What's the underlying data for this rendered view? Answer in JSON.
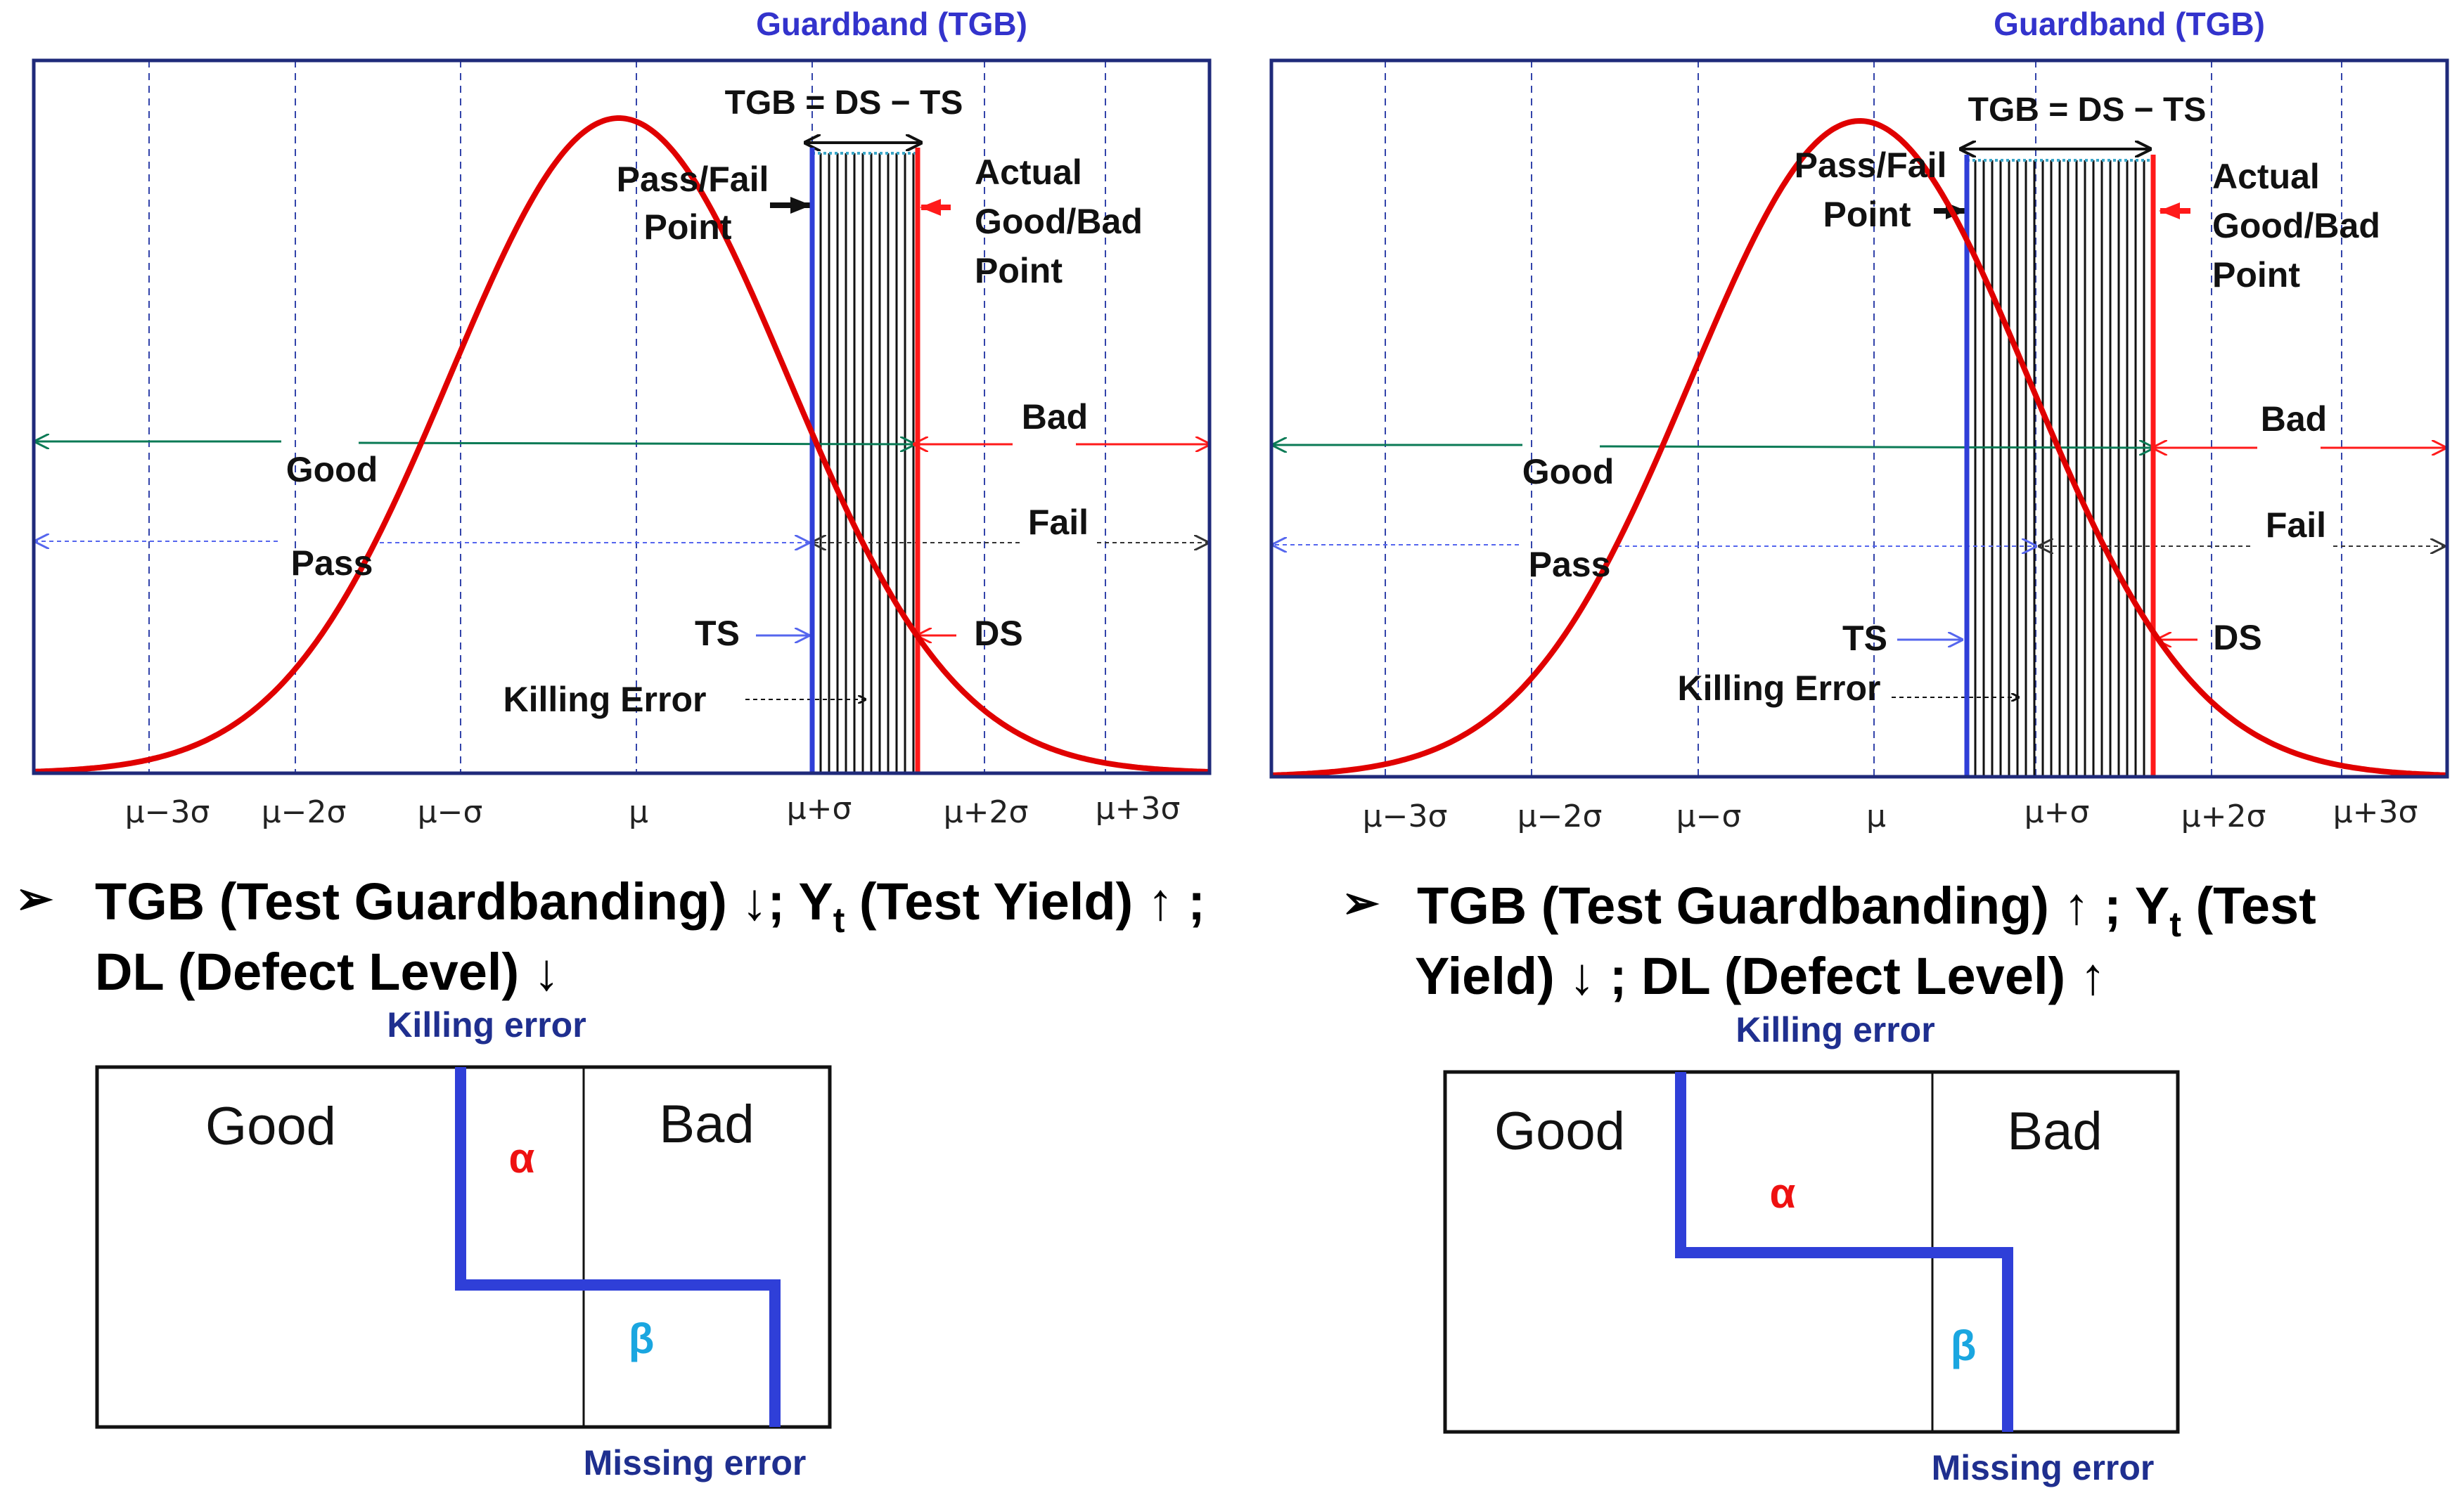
{
  "colors": {
    "frame": "#1f2a7a",
    "curve": "#e00000",
    "ts_line": "#2f3fd8",
    "ds_line": "#ff1a1a",
    "good_arrow": "#0a7a55",
    "pass_arrow": "#5566ee",
    "fail_arrow": "#333333",
    "alpha": "#ee1111",
    "beta": "#1aa6e0",
    "error_path": "#2f3fd8"
  },
  "ticks": [
    "μ−3σ",
    "μ−2σ",
    "μ−σ",
    "μ",
    "μ+σ",
    "μ+2σ",
    "μ+3σ"
  ],
  "left": {
    "guardband_title": "Guardband (TGB)",
    "equation": "TGB = DS − TS",
    "passfail_line1": "Pass/Fail",
    "passfail_line2": "Point",
    "actual_line1": "Actual",
    "actual_line2": "Good/Bad",
    "actual_line3": "Point",
    "bad": "Bad",
    "good": "Good",
    "fail": "Fail",
    "pass": "Pass",
    "ts": "TS",
    "ds": "DS",
    "killing_error": "Killing Error",
    "bullet_symbol": "➢",
    "bullet_line1_a": "TGB (Test Guardbanding) ↓; Y",
    "bullet_sub": "t",
    "bullet_line1_b": " (Test Yield) ↑ ;",
    "bullet_line2": "DL (Defect Level) ↓",
    "matrix": {
      "killing_label": "Killing error",
      "missing_label": "Missing error",
      "good": "Good",
      "bad": "Bad",
      "alpha": "α",
      "beta": "β"
    }
  },
  "right": {
    "guardband_title": "Guardband (TGB)",
    "equation": "TGB = DS − TS",
    "passfail_line1": "Pass/Fail",
    "passfail_line2": "Point",
    "actual_line1": "Actual",
    "actual_line2": "Good/Bad",
    "actual_line3": "Point",
    "bad": "Bad",
    "good": "Good",
    "fail": "Fail",
    "pass": "Pass",
    "ts": "TS",
    "ds": "DS",
    "killing_error": "Killing Error",
    "bullet_symbol": "➢",
    "bullet_line1_a": "TGB (Test Guardbanding) ↑ ; Y",
    "bullet_sub": "t",
    "bullet_line1_b": " (Test",
    "bullet_line2": "Yield) ↓ ; DL (Defect Level) ↑",
    "matrix": {
      "killing_label": "Killing error",
      "missing_label": "Missing error",
      "good": "Good",
      "bad": "Bad",
      "alpha": "α",
      "beta": "β"
    }
  }
}
